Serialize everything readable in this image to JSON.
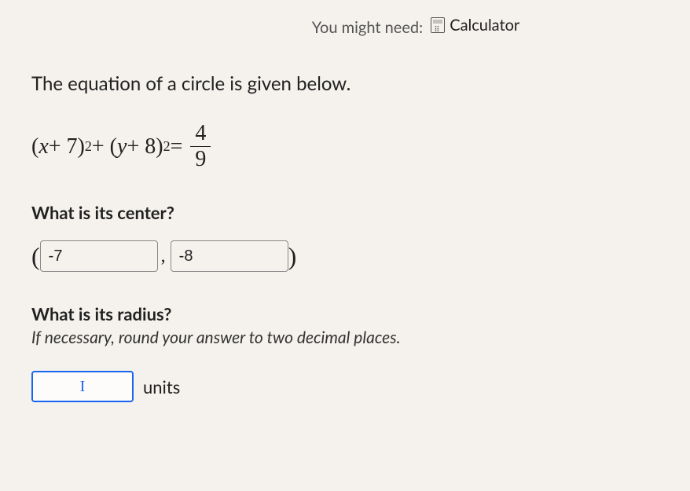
{
  "hint": {
    "prefix": "You might need:",
    "link": "Calculator"
  },
  "intro": "The equation of a circle is given below.",
  "equation": {
    "lhs_parts": {
      "open1": "(",
      "var1": "x",
      "op1": " + 7)",
      "exp1": "2",
      "plus": " + (",
      "var2": "y",
      "op2": " + 8)",
      "exp2": "2",
      "eq": " = "
    },
    "fraction": {
      "num": "4",
      "den": "9"
    }
  },
  "q1": "What is its center?",
  "center": {
    "open": "(",
    "x": "-7",
    "comma": ",",
    "y": "-8",
    "close": ")"
  },
  "q2": "What is its radius?",
  "q2_hint": "If necessary, round your answer to two decimal places.",
  "radius": {
    "value": "I",
    "units": "units"
  },
  "colors": {
    "bg": "#f5f2ed",
    "text": "#212121",
    "muted": "#545454",
    "focus_border": "#1865f2"
  }
}
